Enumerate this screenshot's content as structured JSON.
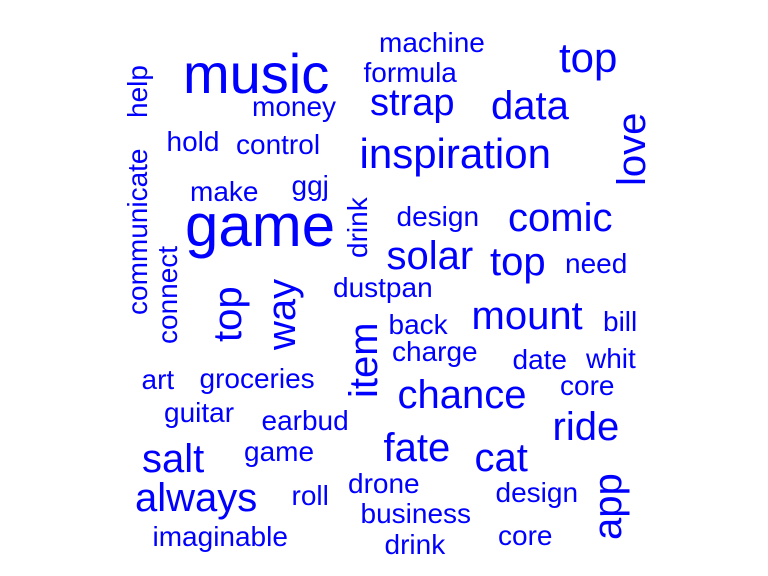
{
  "word_cloud": {
    "color": "#0000ff",
    "words": [
      {
        "id": "music",
        "text": "music"
      },
      {
        "id": "game-large",
        "text": "game"
      },
      {
        "id": "inspiration",
        "text": "inspiration"
      },
      {
        "id": "top-1",
        "text": "top"
      },
      {
        "id": "strap",
        "text": "strap"
      },
      {
        "id": "data",
        "text": "data"
      },
      {
        "id": "machine",
        "text": "machine"
      },
      {
        "id": "formula",
        "text": "formula"
      },
      {
        "id": "money",
        "text": "money"
      },
      {
        "id": "hold",
        "text": "hold"
      },
      {
        "id": "control",
        "text": "control"
      },
      {
        "id": "love",
        "text": "love"
      },
      {
        "id": "help",
        "text": "help"
      },
      {
        "id": "communicate",
        "text": "communicate"
      },
      {
        "id": "connect",
        "text": "connect"
      },
      {
        "id": "make",
        "text": "make"
      },
      {
        "id": "ggj",
        "text": "ggj"
      },
      {
        "id": "drink-1",
        "text": "drink"
      },
      {
        "id": "design-1",
        "text": "design"
      },
      {
        "id": "comic",
        "text": "comic"
      },
      {
        "id": "solar",
        "text": "solar"
      },
      {
        "id": "top-2",
        "text": "top"
      },
      {
        "id": "need",
        "text": "need"
      },
      {
        "id": "top-3",
        "text": "top"
      },
      {
        "id": "way",
        "text": "way"
      },
      {
        "id": "dustpan",
        "text": "dustpan"
      },
      {
        "id": "mount",
        "text": "mount"
      },
      {
        "id": "back",
        "text": "back"
      },
      {
        "id": "bill",
        "text": "bill"
      },
      {
        "id": "item",
        "text": "item"
      },
      {
        "id": "charge",
        "text": "charge"
      },
      {
        "id": "date",
        "text": "date"
      },
      {
        "id": "whit",
        "text": "whit"
      },
      {
        "id": "art",
        "text": "art"
      },
      {
        "id": "groceries",
        "text": "groceries"
      },
      {
        "id": "chance",
        "text": "chance"
      },
      {
        "id": "core-1",
        "text": "core"
      },
      {
        "id": "guitar",
        "text": "guitar"
      },
      {
        "id": "earbud",
        "text": "earbud"
      },
      {
        "id": "ride",
        "text": "ride"
      },
      {
        "id": "fate",
        "text": "fate"
      },
      {
        "id": "salt",
        "text": "salt"
      },
      {
        "id": "game-small",
        "text": "game"
      },
      {
        "id": "cat",
        "text": "cat"
      },
      {
        "id": "app",
        "text": "app"
      },
      {
        "id": "always",
        "text": "always"
      },
      {
        "id": "roll",
        "text": "roll"
      },
      {
        "id": "drone",
        "text": "drone"
      },
      {
        "id": "design-2",
        "text": "design"
      },
      {
        "id": "business",
        "text": "business"
      },
      {
        "id": "imaginable",
        "text": "imaginable"
      },
      {
        "id": "drink-2",
        "text": "drink"
      },
      {
        "id": "core-2",
        "text": "core"
      }
    ]
  }
}
